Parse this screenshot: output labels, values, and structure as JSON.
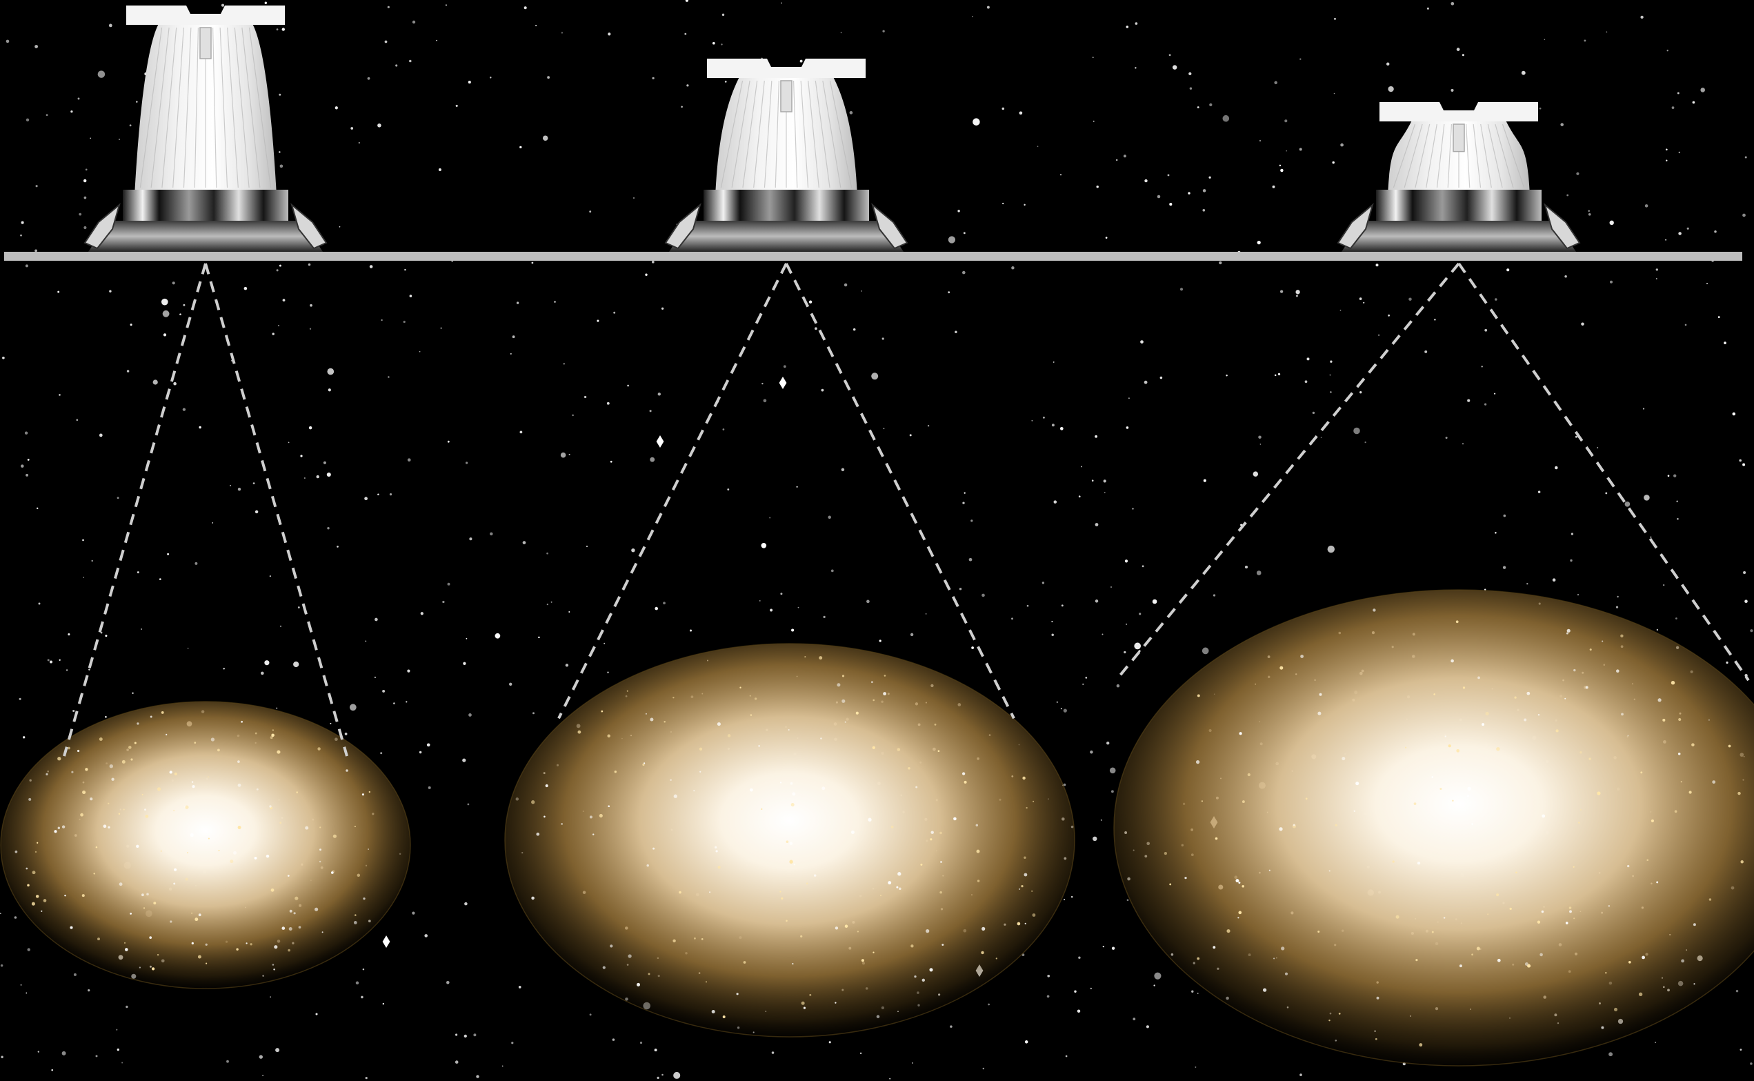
{
  "scene": {
    "description_type": "lens-beam-angle-illustration",
    "background_color": "#000000",
    "ceiling_color": "#bdbdbd",
    "beam_line_color": "#cfcfcf",
    "glow_core_color": "#ffffff",
    "glow_edge_color": "#8a6a2c"
  },
  "lamps": [
    {
      "name": "lamp-narrow",
      "lens_height_rank": 3,
      "spread_rank": 1
    },
    {
      "name": "lamp-medium",
      "lens_height_rank": 2,
      "spread_rank": 2
    },
    {
      "name": "lamp-wide",
      "lens_height_rank": 1,
      "spread_rank": 3
    }
  ]
}
